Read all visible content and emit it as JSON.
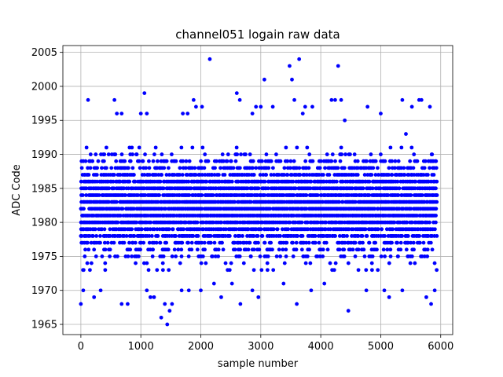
{
  "chart_data": {
    "type": "scatter",
    "title": "channel051 logain raw data",
    "xlabel": "sample number",
    "ylabel": "ADC Code",
    "xlim": [
      -300,
      6200
    ],
    "ylim": [
      1963.5,
      2006
    ],
    "xticks": [
      0,
      1000,
      2000,
      3000,
      4000,
      5000,
      6000
    ],
    "yticks": [
      1965,
      1970,
      1975,
      1980,
      1985,
      1990,
      1995,
      2000,
      2005
    ],
    "grid": true,
    "marker_color": "#0000ff",
    "series": [
      {
        "n_samples": 5939,
        "dense_band": [
          1973,
          1991
        ],
        "outliers": [
          [
            120,
            1998
          ],
          [
            560,
            1998
          ],
          [
            600,
            1996
          ],
          [
            680,
            1996
          ],
          [
            1000,
            1996
          ],
          [
            1060,
            1999
          ],
          [
            1100,
            1996
          ],
          [
            1700,
            1996
          ],
          [
            1780,
            1996
          ],
          [
            1880,
            1998
          ],
          [
            1920,
            1997
          ],
          [
            2020,
            1997
          ],
          [
            2150,
            2004
          ],
          [
            2600,
            1999
          ],
          [
            2650,
            1998
          ],
          [
            2860,
            1996
          ],
          [
            2920,
            1997
          ],
          [
            3000,
            1997
          ],
          [
            3060,
            2001
          ],
          [
            3200,
            1997
          ],
          [
            3480,
            2003
          ],
          [
            3520,
            2001
          ],
          [
            3560,
            1998
          ],
          [
            3640,
            2004
          ],
          [
            3700,
            1996
          ],
          [
            3740,
            1997
          ],
          [
            3860,
            1997
          ],
          [
            4180,
            1998
          ],
          [
            4240,
            1998
          ],
          [
            4290,
            2003
          ],
          [
            4340,
            1998
          ],
          [
            4400,
            1995
          ],
          [
            4780,
            1997
          ],
          [
            5000,
            1996
          ],
          [
            5360,
            1998
          ],
          [
            5420,
            1993
          ],
          [
            5520,
            1997
          ],
          [
            5640,
            1998
          ],
          [
            5680,
            1998
          ],
          [
            5820,
            1997
          ],
          [
            0,
            1968
          ],
          [
            40,
            1970
          ],
          [
            220,
            1969
          ],
          [
            330,
            1970
          ],
          [
            680,
            1968
          ],
          [
            780,
            1968
          ],
          [
            1100,
            1970
          ],
          [
            1160,
            1969
          ],
          [
            1220,
            1969
          ],
          [
            1340,
            1966
          ],
          [
            1400,
            1968
          ],
          [
            1440,
            1965
          ],
          [
            1480,
            1967
          ],
          [
            1520,
            1968
          ],
          [
            1680,
            1970
          ],
          [
            1800,
            1970
          ],
          [
            2000,
            1970
          ],
          [
            2220,
            1971
          ],
          [
            2340,
            1969
          ],
          [
            2520,
            1971
          ],
          [
            2660,
            1968
          ],
          [
            2860,
            1970
          ],
          [
            2960,
            1969
          ],
          [
            3380,
            1971
          ],
          [
            3600,
            1968
          ],
          [
            3840,
            1970
          ],
          [
            4060,
            1971
          ],
          [
            4460,
            1967
          ],
          [
            4760,
            1970
          ],
          [
            5060,
            1970
          ],
          [
            5140,
            1969
          ],
          [
            5360,
            1970
          ],
          [
            5760,
            1969
          ],
          [
            5840,
            1968
          ],
          [
            5900,
            1970
          ]
        ]
      }
    ]
  }
}
